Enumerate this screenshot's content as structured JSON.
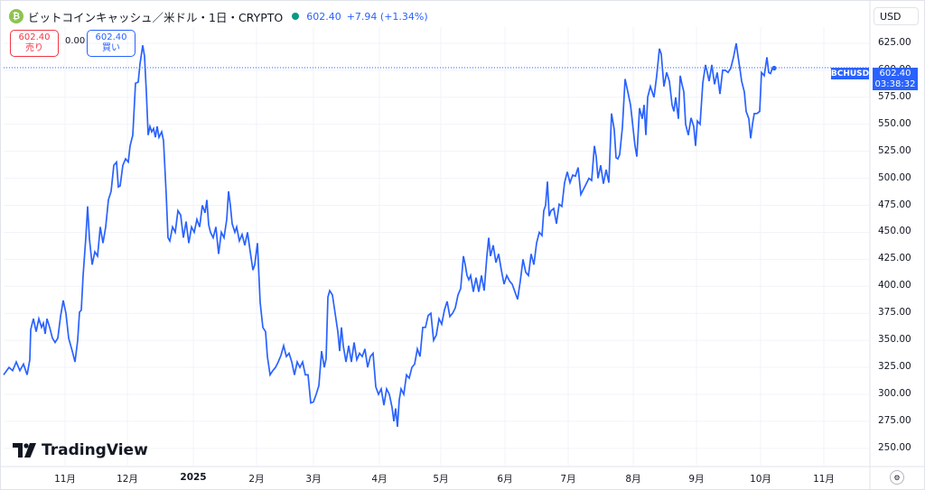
{
  "header": {
    "title": "ビットコインキャッシュ／米ドル・1日・CRYPTO",
    "price": "602.40",
    "change": "+7.94 (+1.34%)"
  },
  "currency": "USD",
  "trade": {
    "sell_price": "602.40",
    "sell_label": "売り",
    "spread": "0.00",
    "buy_price": "602.40",
    "buy_label": "買い"
  },
  "last_price_tag": {
    "symbol": "BCHUSD",
    "price": "602.40",
    "countdown": "03:38:32"
  },
  "watermark": "TradingView",
  "colors": {
    "line": "#2962ff",
    "up": "#089981",
    "down": "#f23645",
    "grid": "#f0f3fa"
  },
  "chart_data": {
    "type": "line",
    "series": [
      {
        "values": [
          [
            0,
            318
          ],
          [
            6,
            325
          ],
          [
            10,
            322
          ],
          [
            14,
            330
          ],
          [
            18,
            322
          ],
          [
            22,
            328
          ],
          [
            26,
            318
          ],
          [
            29,
            332
          ],
          [
            30,
            360
          ],
          [
            33,
            370
          ],
          [
            36,
            358
          ],
          [
            39,
            370
          ],
          [
            42,
            362
          ],
          [
            44,
            366
          ],
          [
            46,
            356
          ],
          [
            48,
            370
          ],
          [
            51,
            362
          ],
          [
            54,
            352
          ],
          [
            57,
            348
          ],
          [
            60,
            352
          ],
          [
            63,
            372
          ],
          [
            66,
            387
          ],
          [
            69,
            375
          ],
          [
            72,
            352
          ],
          [
            76,
            340
          ],
          [
            79,
            330
          ],
          [
            82,
            350
          ],
          [
            84,
            376
          ],
          [
            86,
            378
          ],
          [
            88,
            410
          ],
          [
            91,
            445
          ],
          [
            93,
            474
          ],
          [
            95,
            444
          ],
          [
            98,
            420
          ],
          [
            101,
            432
          ],
          [
            104,
            428
          ],
          [
            107,
            455
          ],
          [
            110,
            440
          ],
          [
            113,
            455
          ],
          [
            116,
            480
          ],
          [
            119,
            488
          ],
          [
            122,
            512
          ],
          [
            125,
            515
          ],
          [
            127,
            492
          ],
          [
            129,
            493
          ],
          [
            132,
            512
          ],
          [
            135,
            518
          ],
          [
            138,
            515
          ],
          [
            140,
            530
          ],
          [
            143,
            540
          ],
          [
            146,
            588
          ],
          [
            149,
            589
          ],
          [
            151,
            606
          ],
          [
            154,
            623
          ],
          [
            156,
            613
          ],
          [
            158,
            580
          ],
          [
            160,
            540
          ],
          [
            162,
            548
          ],
          [
            164,
            543
          ],
          [
            166,
            546
          ],
          [
            168,
            538
          ],
          [
            170,
            548
          ],
          [
            172,
            538
          ],
          [
            175,
            543
          ],
          [
            177,
            535
          ],
          [
            180,
            485
          ],
          [
            182,
            445
          ],
          [
            184,
            442
          ],
          [
            187,
            455
          ],
          [
            190,
            450
          ],
          [
            193,
            470
          ],
          [
            196,
            466
          ],
          [
            199,
            445
          ],
          [
            202,
            460
          ],
          [
            205,
            440
          ],
          [
            208,
            455
          ],
          [
            211,
            450
          ],
          [
            214,
            462
          ],
          [
            217,
            455
          ],
          [
            220,
            475
          ],
          [
            223,
            468
          ],
          [
            225,
            480
          ],
          [
            227,
            457
          ],
          [
            229,
            450
          ],
          [
            232,
            445
          ],
          [
            235,
            455
          ],
          [
            238,
            430
          ],
          [
            241,
            450
          ],
          [
            244,
            445
          ],
          [
            247,
            462
          ],
          [
            249,
            488
          ],
          [
            251,
            475
          ],
          [
            253,
            458
          ],
          [
            256,
            450
          ],
          [
            258,
            455
          ],
          [
            261,
            442
          ],
          [
            264,
            448
          ],
          [
            267,
            438
          ],
          [
            270,
            450
          ],
          [
            273,
            432
          ],
          [
            276,
            415
          ],
          [
            278,
            420
          ],
          [
            281,
            440
          ],
          [
            284,
            385
          ],
          [
            287,
            362
          ],
          [
            290,
            358
          ],
          [
            292,
            335
          ],
          [
            295,
            318
          ],
          [
            298,
            322
          ],
          [
            301,
            325
          ],
          [
            304,
            330
          ],
          [
            307,
            336
          ],
          [
            310,
            345
          ],
          [
            313,
            335
          ],
          [
            316,
            338
          ],
          [
            319,
            330
          ],
          [
            322,
            318
          ],
          [
            325,
            330
          ],
          [
            328,
            325
          ],
          [
            331,
            330
          ],
          [
            334,
            318
          ],
          [
            337,
            318
          ],
          [
            340,
            292
          ],
          [
            343,
            293
          ],
          [
            346,
            300
          ],
          [
            349,
            308
          ],
          [
            352,
            340
          ],
          [
            355,
            325
          ],
          [
            357,
            333
          ],
          [
            359,
            390
          ],
          [
            361,
            396
          ],
          [
            364,
            392
          ],
          [
            367,
            375
          ],
          [
            370,
            358
          ],
          [
            372,
            340
          ],
          [
            374,
            362
          ],
          [
            376,
            345
          ],
          [
            379,
            330
          ],
          [
            382,
            345
          ],
          [
            385,
            330
          ],
          [
            388,
            348
          ],
          [
            391,
            332
          ],
          [
            394,
            338
          ],
          [
            397,
            335
          ],
          [
            400,
            342
          ],
          [
            403,
            325
          ],
          [
            406,
            335
          ],
          [
            409,
            338
          ],
          [
            412,
            307
          ],
          [
            415,
            300
          ],
          [
            418,
            305
          ],
          [
            421,
            290
          ],
          [
            424,
            305
          ],
          [
            427,
            300
          ],
          [
            430,
            288
          ],
          [
            432,
            275
          ],
          [
            434,
            287
          ],
          [
            436,
            270
          ],
          [
            438,
            295
          ],
          [
            440,
            305
          ],
          [
            443,
            300
          ],
          [
            446,
            318
          ],
          [
            449,
            315
          ],
          [
            452,
            325
          ],
          [
            455,
            328
          ],
          [
            458,
            342
          ],
          [
            461,
            335
          ],
          [
            464,
            362
          ],
          [
            467,
            362
          ],
          [
            470,
            373
          ],
          [
            473,
            375
          ],
          [
            476,
            350
          ],
          [
            479,
            355
          ],
          [
            482,
            370
          ],
          [
            485,
            365
          ],
          [
            488,
            378
          ],
          [
            491,
            386
          ],
          [
            494,
            372
          ],
          [
            497,
            375
          ],
          [
            500,
            380
          ],
          [
            503,
            392
          ],
          [
            506,
            398
          ],
          [
            509,
            428
          ],
          [
            511,
            420
          ],
          [
            513,
            410
          ],
          [
            515,
            406
          ],
          [
            517,
            410
          ],
          [
            520,
            395
          ],
          [
            523,
            408
          ],
          [
            526,
            395
          ],
          [
            529,
            410
          ],
          [
            532,
            396
          ],
          [
            535,
            428
          ],
          [
            537,
            445
          ],
          [
            539,
            428
          ],
          [
            542,
            438
          ],
          [
            545,
            422
          ],
          [
            548,
            430
          ],
          [
            551,
            415
          ],
          [
            554,
            402
          ],
          [
            557,
            410
          ],
          [
            560,
            405
          ],
          [
            563,
            402
          ],
          [
            566,
            395
          ],
          [
            569,
            388
          ],
          [
            572,
            405
          ],
          [
            575,
            425
          ],
          [
            578,
            413
          ],
          [
            581,
            410
          ],
          [
            584,
            430
          ],
          [
            587,
            420
          ],
          [
            590,
            440
          ],
          [
            593,
            450
          ],
          [
            596,
            447
          ],
          [
            598,
            470
          ],
          [
            600,
            475
          ],
          [
            602,
            497
          ],
          [
            604,
            465
          ],
          [
            606,
            470
          ],
          [
            609,
            472
          ],
          [
            612,
            458
          ],
          [
            615,
            476
          ],
          [
            618,
            474
          ],
          [
            621,
            496
          ],
          [
            624,
            506
          ],
          [
            627,
            496
          ],
          [
            630,
            503
          ],
          [
            633,
            502
          ],
          [
            636,
            510
          ],
          [
            639,
            485
          ],
          [
            642,
            490
          ],
          [
            645,
            495
          ],
          [
            648,
            500
          ],
          [
            651,
            498
          ],
          [
            654,
            530
          ],
          [
            656,
            520
          ],
          [
            658,
            500
          ],
          [
            661,
            512
          ],
          [
            664,
            495
          ],
          [
            667,
            508
          ],
          [
            670,
            496
          ],
          [
            673,
            560
          ],
          [
            676,
            545
          ],
          [
            678,
            519
          ],
          [
            680,
            518
          ],
          [
            682,
            522
          ],
          [
            685,
            547
          ],
          [
            688,
            592
          ],
          [
            691,
            580
          ],
          [
            694,
            568
          ],
          [
            697,
            545
          ],
          [
            699,
            530
          ],
          [
            701,
            520
          ],
          [
            704,
            565
          ],
          [
            707,
            555
          ],
          [
            709,
            568
          ],
          [
            711,
            540
          ],
          [
            713,
            575
          ],
          [
            716,
            585
          ],
          [
            718,
            580
          ],
          [
            720,
            575
          ],
          [
            723,
            595
          ],
          [
            726,
            620
          ],
          [
            728,
            615
          ],
          [
            731,
            585
          ],
          [
            734,
            598
          ],
          [
            737,
            590
          ],
          [
            740,
            568
          ],
          [
            742,
            562
          ],
          [
            744,
            575
          ],
          [
            747,
            555
          ],
          [
            749,
            595
          ],
          [
            751,
            587
          ],
          [
            753,
            580
          ],
          [
            755,
            550
          ],
          [
            758,
            540
          ],
          [
            761,
            556
          ],
          [
            764,
            548
          ],
          [
            766,
            530
          ],
          [
            768,
            553
          ],
          [
            771,
            550
          ],
          [
            774,
            588
          ],
          [
            777,
            605
          ],
          [
            779,
            598
          ],
          [
            781,
            590
          ],
          [
            784,
            605
          ],
          [
            787,
            587
          ],
          [
            790,
            598
          ],
          [
            793,
            578
          ],
          [
            796,
            600
          ],
          [
            799,
            600
          ],
          [
            802,
            598
          ],
          [
            805,
            602
          ],
          [
            808,
            612
          ],
          [
            811,
            625
          ],
          [
            813,
            613
          ],
          [
            815,
            602
          ],
          [
            817,
            590
          ],
          [
            820,
            580
          ],
          [
            822,
            562
          ],
          [
            825,
            555
          ],
          [
            827,
            537
          ],
          [
            829,
            550
          ],
          [
            831,
            560
          ],
          [
            834,
            560
          ],
          [
            837,
            562
          ],
          [
            839,
            598
          ],
          [
            842,
            595
          ],
          [
            845,
            612
          ],
          [
            847,
            598
          ],
          [
            849,
            597
          ],
          [
            851,
            602
          ],
          [
            853,
            602
          ]
        ]
      }
    ],
    "y_ticks": [
      "625.00",
      "600.00",
      "575.00",
      "550.00",
      "525.00",
      "500.00",
      "475.00",
      "450.00",
      "425.00",
      "400.00",
      "375.00",
      "350.00",
      "325.00",
      "300.00",
      "275.00",
      "250.00"
    ],
    "x_ticks": [
      {
        "label": "11月",
        "year": false
      },
      {
        "label": "12月",
        "year": false
      },
      {
        "label": "2025",
        "year": true
      },
      {
        "label": "2月",
        "year": false
      },
      {
        "label": "3月",
        "year": false
      },
      {
        "label": "4月",
        "year": false
      },
      {
        "label": "5月",
        "year": false
      },
      {
        "label": "6月",
        "year": false
      },
      {
        "label": "7月",
        "year": false
      },
      {
        "label": "8月",
        "year": false
      },
      {
        "label": "9月",
        "year": false
      },
      {
        "label": "10月",
        "year": false
      },
      {
        "label": "11月",
        "year": false
      }
    ],
    "ylim": [
      234,
      640
    ],
    "last_value": 602.4
  }
}
